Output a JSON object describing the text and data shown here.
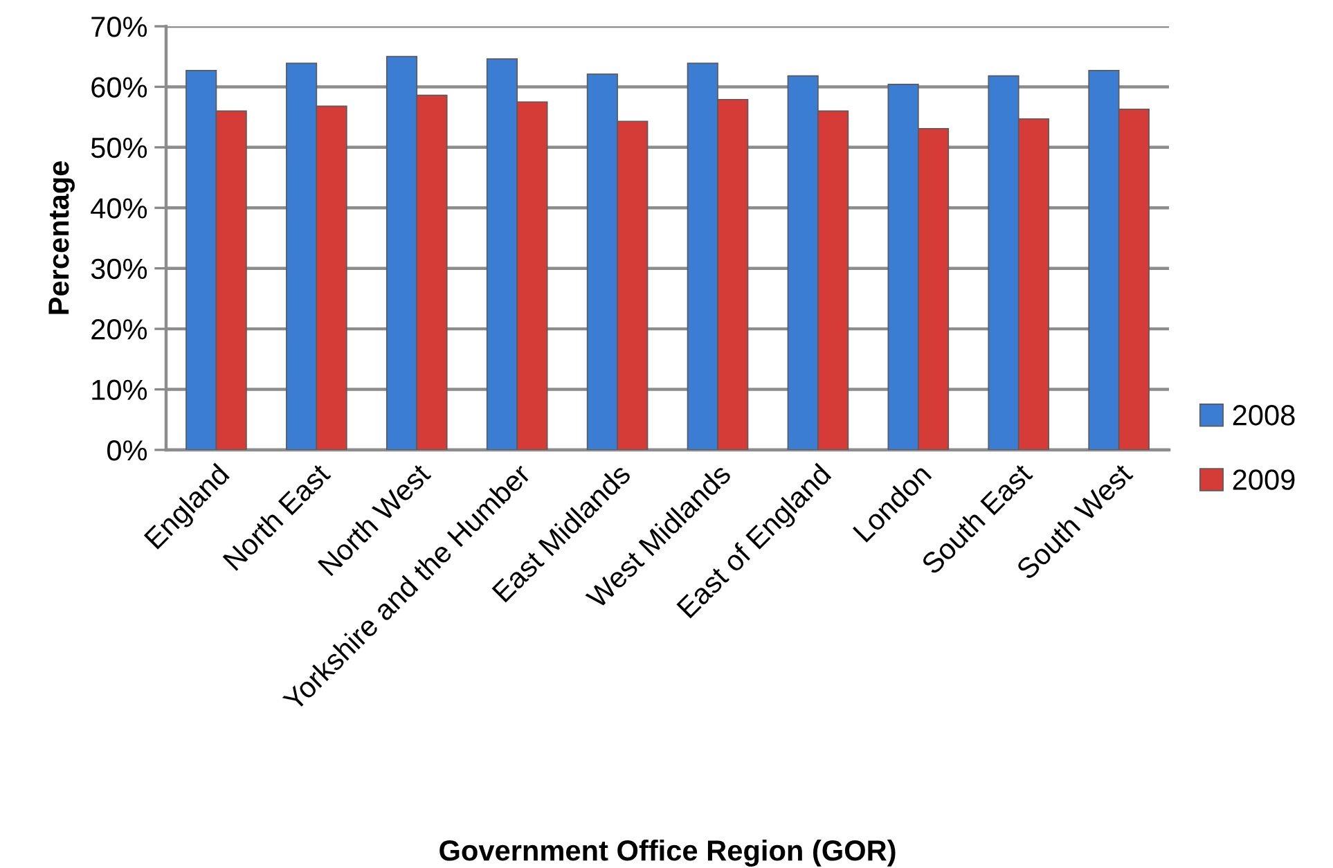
{
  "chart_data": {
    "type": "bar",
    "xlabel": "Government Office Region (GOR)",
    "ylabel": "Percentage",
    "categories": [
      "England",
      "North East",
      "North West",
      "Yorkshire and the Humber",
      "East Midlands",
      "West Midlands",
      "East of England",
      "London",
      "South East",
      "South West"
    ],
    "series": [
      {
        "name": "2008",
        "color": "#3b7dd3",
        "values": [
          62.7,
          63.9,
          65.0,
          64.6,
          62.1,
          63.9,
          61.8,
          60.4,
          61.8,
          62.7
        ]
      },
      {
        "name": "2009",
        "color": "#d63c37",
        "values": [
          56.0,
          56.8,
          58.6,
          57.5,
          54.3,
          57.9,
          56.0,
          53.1,
          54.7,
          56.3
        ]
      }
    ],
    "ylim": [
      0,
      70
    ],
    "yticks": [
      {
        "value": 0,
        "label": "0%"
      },
      {
        "value": 10,
        "label": "10%"
      },
      {
        "value": 20,
        "label": "20%"
      },
      {
        "value": 30,
        "label": "30%"
      },
      {
        "value": 40,
        "label": "40%"
      },
      {
        "value": 50,
        "label": "50%"
      },
      {
        "value": 60,
        "label": "60%"
      },
      {
        "value": 70,
        "label": "70%"
      }
    ],
    "grid": "y",
    "legend": "right"
  }
}
